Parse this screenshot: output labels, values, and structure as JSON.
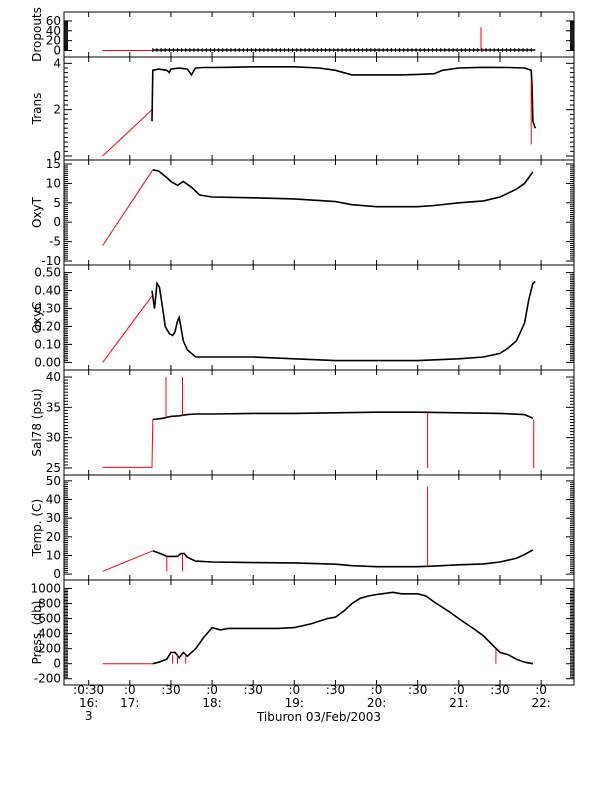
{
  "colors": {
    "profile": "#000000",
    "gap": "#ff0000",
    "axes": "#000000",
    "background": "#ffffff"
  },
  "chart_data": {
    "type": "line",
    "title": "",
    "xlabel": "Tiburon 03/Feb/2003",
    "x_axis": {
      "tick_hours": [
        16.5,
        17.0,
        17.5,
        18.0,
        18.5,
        19.0,
        19.5,
        20.0,
        20.5,
        21.0,
        21.5,
        22.0
      ],
      "tick_labels_top": [
        ":0:30",
        ":0",
        ":30",
        ":0",
        ":30",
        ":0",
        ":30",
        ":0",
        ":30",
        ":0",
        ":30",
        ":0"
      ],
      "tick_labels_bottom": [
        "16:",
        "17:",
        "",
        "18:",
        "",
        "19:",
        "",
        "20:",
        "",
        "21:",
        "",
        "22:"
      ],
      "day_label": "3",
      "range": [
        16.2,
        22.4
      ]
    },
    "panels": [
      {
        "ylabel": "Dropouts",
        "ylim": [
          -5,
          70
        ],
        "ytick_values": [
          0,
          20,
          40,
          60
        ],
        "ytick_labels": [
          "0",
          "20",
          "40",
          "60"
        ],
        "series": [
          {
            "kind": "gap",
            "x": [
              16.67,
              17.28
            ],
            "y": [
              0,
              0
            ]
          },
          {
            "kind": "profile",
            "x": [
              17.28,
              17.5,
              18.0,
              18.5,
              19.0,
              19.5,
              20.0,
              20.5,
              21.0,
              21.5,
              21.93
            ],
            "y": [
              1,
              1,
              1,
              1,
              1,
              1,
              1,
              1,
              1,
              1,
              1
            ]
          },
          {
            "kind": "spike",
            "x": [
              21.27,
              21.27
            ],
            "y": [
              0,
              47
            ]
          }
        ]
      },
      {
        "ylabel": "Trans",
        "ylim": [
          0,
          4.1
        ],
        "ytick_values": [
          0,
          2,
          4
        ],
        "ytick_labels": [
          "0",
          "2",
          "4"
        ],
        "series": [
          {
            "kind": "gap",
            "x": [
              16.67,
              17.27
            ],
            "y": [
              0,
              2
            ]
          },
          {
            "kind": "profile",
            "x": [
              17.27,
              17.28,
              17.35,
              17.45,
              17.48,
              17.5,
              17.6,
              17.7,
              17.75,
              17.78,
              17.8,
              17.9,
              18.0,
              18.2,
              18.5,
              19.0,
              19.3,
              19.5,
              19.7,
              20.0,
              20.3,
              20.5,
              20.7,
              20.8,
              21.0,
              21.3,
              21.6,
              21.8,
              21.88,
              21.89,
              21.9,
              21.93
            ],
            "y": [
              1.5,
              3.7,
              3.75,
              3.7,
              3.6,
              3.75,
              3.8,
              3.75,
              3.5,
              3.7,
              3.8,
              3.82,
              3.82,
              3.83,
              3.85,
              3.85,
              3.8,
              3.7,
              3.5,
              3.5,
              3.5,
              3.52,
              3.55,
              3.7,
              3.8,
              3.83,
              3.82,
              3.8,
              3.7,
              3.1,
              1.5,
              1.2
            ]
          },
          {
            "kind": "spike",
            "x": [
              21.88,
              21.88
            ],
            "y": [
              3.3,
              0.5
            ]
          }
        ]
      },
      {
        "ylabel": "OxyT",
        "ylim": [
          -10,
          15
        ],
        "ytick_values": [
          -10,
          -5,
          0,
          5,
          10,
          15
        ],
        "ytick_labels": [
          "-10",
          "-5",
          "0",
          "5",
          "10",
          "15"
        ],
        "series": [
          {
            "kind": "gap",
            "x": [
              16.67,
              17.28
            ],
            "y": [
              -6,
              13.5
            ]
          },
          {
            "kind": "profile",
            "x": [
              17.28,
              17.35,
              17.45,
              17.5,
              17.58,
              17.65,
              17.75,
              17.85,
              18.0,
              18.5,
              19.0,
              19.5,
              19.7,
              20.0,
              20.3,
              20.5,
              20.7,
              21.0,
              21.3,
              21.5,
              21.7,
              21.8,
              21.9
            ],
            "y": [
              13.5,
              13.2,
              11.5,
              10.5,
              9.5,
              10.5,
              9.0,
              7.0,
              6.5,
              6.3,
              6.0,
              5.3,
              4.5,
              4.0,
              4.0,
              4.0,
              4.3,
              5.0,
              5.5,
              6.5,
              8.5,
              10.0,
              13.0
            ]
          }
        ]
      },
      {
        "ylabel": "OxyC",
        "ylim": [
          -0.02,
          0.52
        ],
        "ytick_values": [
          0.0,
          0.1,
          0.2,
          0.3,
          0.4,
          0.5
        ],
        "ytick_labels": [
          "0.00",
          "0.10",
          "0.20",
          "0.30",
          "0.40",
          "0.50"
        ],
        "series": [
          {
            "kind": "gap",
            "x": [
              16.67,
              17.27
            ],
            "y": [
              0.0,
              0.37
            ]
          },
          {
            "kind": "profile",
            "x": [
              17.27,
              17.3,
              17.33,
              17.36,
              17.4,
              17.43,
              17.48,
              17.52,
              17.55,
              17.58,
              17.6,
              17.65,
              17.7,
              17.8,
              17.9,
              18.0,
              18.5,
              19.0,
              19.5,
              20.0,
              20.5,
              21.0,
              21.3,
              21.5,
              21.6,
              21.7,
              21.8,
              21.85,
              21.9,
              21.93
            ],
            "y": [
              0.4,
              0.3,
              0.44,
              0.42,
              0.3,
              0.2,
              0.16,
              0.15,
              0.17,
              0.23,
              0.25,
              0.12,
              0.07,
              0.03,
              0.03,
              0.03,
              0.03,
              0.02,
              0.01,
              0.01,
              0.01,
              0.02,
              0.03,
              0.05,
              0.08,
              0.12,
              0.22,
              0.35,
              0.44,
              0.45
            ]
          }
        ]
      },
      {
        "ylabel": "Sal78 (psu)",
        "ylim": [
          24.5,
          40.5
        ],
        "ytick_values": [
          25,
          30,
          35,
          40
        ],
        "ytick_labels": [
          "25",
          "30",
          "35",
          "40"
        ],
        "series": [
          {
            "kind": "gap",
            "x": [
              16.67,
              17.27,
              17.27,
              17.28
            ],
            "y": [
              25.1,
              25.1,
              25.1,
              33.0
            ]
          },
          {
            "kind": "profile",
            "x": [
              17.28,
              17.4,
              17.5,
              17.6,
              17.7,
              17.8,
              18.0,
              18.5,
              19.0,
              19.5,
              20.0,
              20.5,
              21.0,
              21.5,
              21.8,
              21.9
            ],
            "y": [
              33.0,
              33.2,
              33.5,
              33.6,
              33.8,
              33.9,
              33.9,
              34.0,
              34.0,
              34.1,
              34.2,
              34.2,
              34.1,
              34.0,
              33.8,
              33.2
            ]
          },
          {
            "kind": "spike",
            "x": [
              17.44,
              17.44
            ],
            "y": [
              33.3,
              40.0
            ]
          },
          {
            "kind": "spike",
            "x": [
              17.64,
              17.64
            ],
            "y": [
              33.7,
              40.0
            ]
          },
          {
            "kind": "spike",
            "x": [
              20.62,
              20.62
            ],
            "y": [
              34.2,
              25.0
            ]
          },
          {
            "kind": "spike",
            "x": [
              21.91,
              21.91
            ],
            "y": [
              33.0,
              25.0
            ]
          }
        ]
      },
      {
        "ylabel": "Temp. (C)",
        "ylim": [
          -1,
          51
        ],
        "ytick_values": [
          0,
          10,
          20,
          30,
          40,
          50
        ],
        "ytick_labels": [
          "0",
          "10",
          "20",
          "30",
          "40",
          "50"
        ],
        "series": [
          {
            "kind": "gap",
            "x": [
              16.67,
              17.28
            ],
            "y": [
              1.5,
              12.5
            ]
          },
          {
            "kind": "profile",
            "x": [
              17.28,
              17.4,
              17.45,
              17.5,
              17.58,
              17.62,
              17.66,
              17.7,
              17.8,
              18.0,
              18.5,
              19.0,
              19.5,
              19.7,
              20.0,
              20.3,
              20.5,
              20.7,
              21.0,
              21.3,
              21.5,
              21.7,
              21.8,
              21.9
            ],
            "y": [
              12.5,
              10.5,
              9.5,
              9.5,
              9.5,
              11.0,
              11.0,
              9.0,
              7.0,
              6.5,
              6.2,
              6.0,
              5.3,
              4.5,
              4.0,
              4.0,
              4.0,
              4.3,
              5.0,
              5.5,
              6.5,
              8.5,
              10.5,
              13.0
            ]
          },
          {
            "kind": "spike",
            "x": [
              17.45,
              17.45
            ],
            "y": [
              10.0,
              1.5
            ]
          },
          {
            "kind": "spike",
            "x": [
              17.64,
              17.64
            ],
            "y": [
              10.5,
              1.5
            ]
          },
          {
            "kind": "spike",
            "x": [
              20.62,
              20.62
            ],
            "y": [
              4.0,
              47.0
            ]
          }
        ]
      },
      {
        "ylabel": "Press. (db)",
        "ylim": [
          -230,
          1060
        ],
        "ytick_values": [
          -200,
          0,
          200,
          400,
          600,
          800,
          1000
        ],
        "ytick_labels": [
          "-200",
          "0",
          "200",
          "400",
          "600",
          "800",
          "1000"
        ],
        "series": [
          {
            "kind": "gap",
            "x": [
              16.67,
              17.28
            ],
            "y": [
              0,
              0
            ]
          },
          {
            "kind": "profile",
            "x": [
              17.28,
              17.35,
              17.45,
              17.5,
              17.55,
              17.6,
              17.65,
              17.7,
              17.8,
              17.9,
              18.0,
              18.1,
              18.2,
              18.5,
              18.8,
              19.0,
              19.2,
              19.4,
              19.5,
              19.6,
              19.7,
              19.8,
              19.9,
              20.0,
              20.2,
              20.3,
              20.5,
              20.6,
              20.7,
              20.8,
              20.9,
              21.0,
              21.2,
              21.3,
              21.4,
              21.5,
              21.6,
              21.7,
              21.8,
              21.9
            ],
            "y": [
              0,
              20,
              60,
              150,
              150,
              80,
              150,
              100,
              200,
              350,
              480,
              450,
              470,
              470,
              470,
              480,
              530,
              600,
              620,
              700,
              800,
              870,
              900,
              920,
              950,
              930,
              930,
              900,
              820,
              750,
              680,
              600,
              450,
              370,
              260,
              150,
              120,
              60,
              20,
              0
            ]
          },
          {
            "kind": "spike",
            "x": [
              17.52,
              17.52
            ],
            "y": [
              120,
              0
            ]
          },
          {
            "kind": "spike",
            "x": [
              17.58,
              17.58
            ],
            "y": [
              130,
              0
            ]
          },
          {
            "kind": "spike",
            "x": [
              17.68,
              17.68
            ],
            "y": [
              120,
              0
            ]
          },
          {
            "kind": "spike",
            "x": [
              21.45,
              21.45
            ],
            "y": [
              200,
              0
            ]
          }
        ]
      }
    ]
  }
}
